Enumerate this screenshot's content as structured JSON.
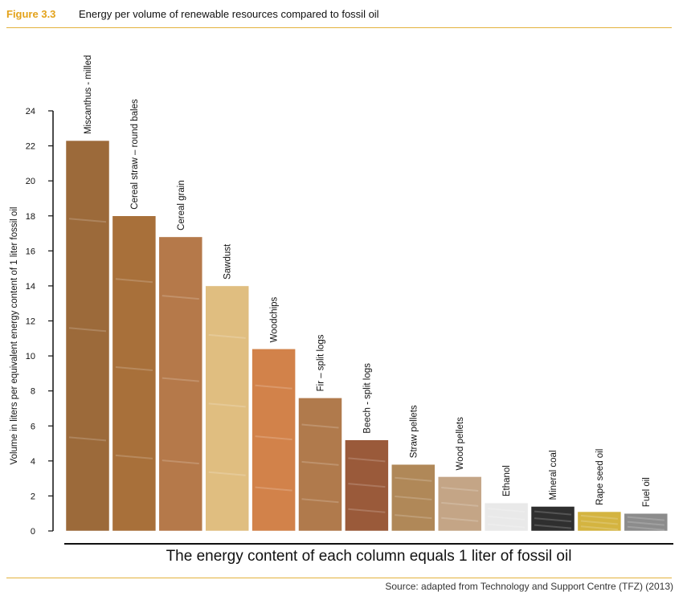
{
  "header": {
    "figure_number": "Figure 3.3",
    "title": "Energy per volume of renewable resources compared to fossil oil"
  },
  "footer": {
    "note": "The energy content of each column equals 1 liter of fossil oil",
    "source": "Source: adapted from Technology and Support Centre (TFZ) (2013)"
  },
  "colors": {
    "accent": "#e3a21a",
    "rule": "#e3b23c"
  },
  "chart_data": {
    "type": "bar",
    "title": "Energy per volume of renewable resources compared to fossil oil",
    "ylabel": "Volume in liters per equivalent energy content of 1 liter fossil oil",
    "xlabel": "",
    "ylim": [
      0,
      24
    ],
    "yticks": [
      0,
      2,
      4,
      6,
      8,
      10,
      12,
      14,
      16,
      18,
      20,
      22,
      24
    ],
    "categories": [
      "Miscanthus - milled",
      "Cereal straw – round bales",
      "Cereal grain",
      "Sawdust",
      "Woodchips",
      "Fir – split logs",
      "Beech - split logs",
      "Straw pellets",
      "Wood pellets",
      "Ethanol",
      "Mineral coal",
      "Rape seed oil",
      "Fuel oil"
    ],
    "values": [
      22.3,
      18.0,
      16.8,
      14.0,
      10.4,
      7.6,
      5.2,
      3.8,
      3.1,
      1.6,
      1.4,
      1.1,
      1.0
    ],
    "bar_colors": [
      "#9c6a3a",
      "#a8703a",
      "#b5794a",
      "#e0be80",
      "#d2824a",
      "#b07a4c",
      "#9a5a3a",
      "#b08858",
      "#c4a586",
      "#e9e9e9",
      "#2f2f2f",
      "#d4b440",
      "#8c8c8c"
    ]
  }
}
